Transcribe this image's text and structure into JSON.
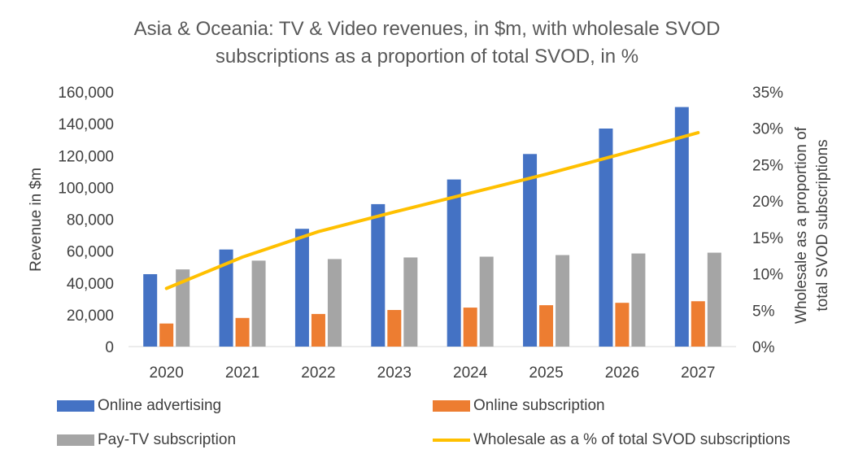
{
  "chart_data": {
    "type": "bar",
    "title_lines": [
      "Asia & Oceania: TV & Video revenues, in $m, with wholesale SVOD",
      "subscriptions as a proportion of total SVOD, in %"
    ],
    "categories": [
      "2020",
      "2021",
      "2022",
      "2023",
      "2024",
      "2025",
      "2026",
      "2027"
    ],
    "series": [
      {
        "name": "Online advertising",
        "type": "bar",
        "axis": "left",
        "color": "#4472C4",
        "values": [
          45500,
          61000,
          74000,
          89500,
          105000,
          121000,
          137000,
          150500
        ]
      },
      {
        "name": "Online subscription",
        "type": "bar",
        "axis": "left",
        "color": "#ED7D31",
        "values": [
          14500,
          18000,
          20500,
          23000,
          24500,
          26000,
          27500,
          28500
        ]
      },
      {
        "name": "Pay-TV subscription",
        "type": "bar",
        "axis": "left",
        "color": "#A5A5A5",
        "values": [
          48500,
          54000,
          55000,
          56000,
          56500,
          57500,
          58500,
          59000
        ]
      },
      {
        "name": "Wholesale as a % of total SVOD subscriptions",
        "type": "line",
        "axis": "right",
        "color": "#FFC000",
        "values": [
          8.0,
          12.3,
          15.8,
          18.5,
          21.1,
          23.7,
          26.5,
          29.4
        ]
      }
    ],
    "ylabel": "Revenue in $m",
    "ylabel_right": [
      "Wholesale as a proportion of",
      "total SVOD subscriptions"
    ],
    "ylim": [
      0,
      160000
    ],
    "yticks": [
      0,
      20000,
      40000,
      60000,
      80000,
      100000,
      120000,
      140000,
      160000
    ],
    "ytick_labels": [
      "0",
      "20,000",
      "40,000",
      "60,000",
      "80,000",
      "100,000",
      "120,000",
      "140,000",
      "160,000"
    ],
    "ylim_right": [
      0,
      35
    ],
    "yticks_right_labels": [
      "0%",
      "5%",
      "10%",
      "15%",
      "20%",
      "25%",
      "30%",
      "35%"
    ],
    "grid": false,
    "legend_position": "bottom"
  }
}
